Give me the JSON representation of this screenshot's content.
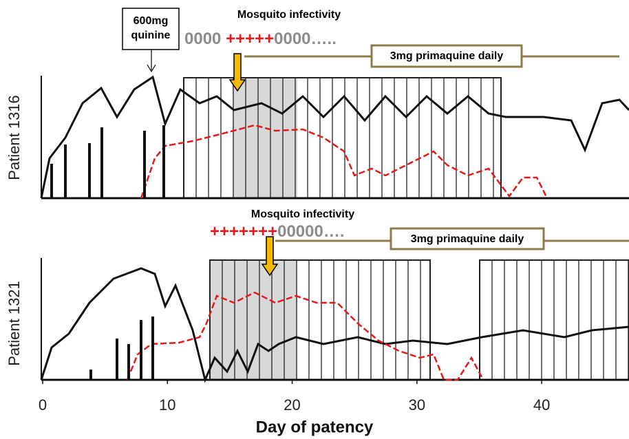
{
  "chart_data": {
    "type": "line",
    "xlabel": "Day of patency",
    "xlim": [
      0,
      47
    ],
    "xticks": [
      0,
      10,
      20,
      30,
      40
    ],
    "quinine_label": [
      "600mg",
      "quinine"
    ],
    "panels": [
      {
        "label": "Patient 1316",
        "infectivity_title": "Mosquito infectivity",
        "infectivity": [
          "0000 ",
          "+++++",
          "0000….."
        ],
        "primaquine": "3mg primaquine daily"
      },
      {
        "label": "Patient 1321",
        "infectivity_title": "Mosquito infectivity",
        "infectivity": [
          "+++++++",
          "00000…."
        ],
        "primaquine": "3mg primaquine daily"
      }
    ]
  }
}
